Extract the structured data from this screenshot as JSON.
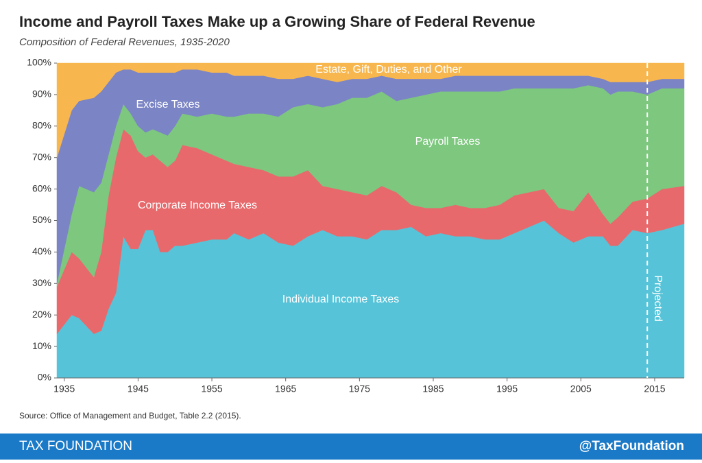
{
  "chart_data": {
    "type": "stacked-area",
    "title": "Income and Payroll Taxes Make up a Growing Share of Federal Revenue",
    "subtitle": "Composition of Federal Revenues, 1935-2020",
    "source": "Source: Office of Management and Budget, Table 2.2 (2015).",
    "x": [
      1934,
      1936,
      1937,
      1939,
      1940,
      1941,
      1942,
      1943,
      1944,
      1945,
      1946,
      1947,
      1948,
      1949,
      1950,
      1951,
      1953,
      1955,
      1957,
      1958,
      1960,
      1962,
      1964,
      1966,
      1968,
      1970,
      1972,
      1974,
      1976,
      1978,
      1980,
      1982,
      1984,
      1986,
      1988,
      1990,
      1992,
      1994,
      1996,
      1998,
      2000,
      2002,
      2004,
      2006,
      2008,
      2009,
      2010,
      2012,
      2014,
      2016,
      2019
    ],
    "xlim": [
      1934,
      2019
    ],
    "xticks": [
      1935,
      1945,
      1955,
      1965,
      1975,
      1985,
      1995,
      2005,
      2015
    ],
    "ylim": [
      0,
      100
    ],
    "yticks": [
      {
        "value": 0,
        "label": "0%"
      },
      {
        "value": 10,
        "label": "10%"
      },
      {
        "value": 20,
        "label": "20%"
      },
      {
        "value": 30,
        "label": "30%"
      },
      {
        "value": 40,
        "label": "40%"
      },
      {
        "value": 50,
        "label": "50%"
      },
      {
        "value": 60,
        "label": "60%"
      },
      {
        "value": 70,
        "label": "70%"
      },
      {
        "value": 80,
        "label": "80%"
      },
      {
        "value": 90,
        "label": "90%"
      },
      {
        "value": 100,
        "label": "100%"
      }
    ],
    "series": [
      {
        "name": "Individual Income Taxes",
        "color": "#56c3d8",
        "values": [
          14,
          20,
          19,
          14,
          15,
          22,
          27,
          45,
          41,
          41,
          47,
          47,
          40,
          40,
          42,
          42,
          43,
          44,
          44,
          46,
          44,
          46,
          43,
          42,
          45,
          47,
          45,
          45,
          44,
          47,
          47,
          48,
          45,
          46,
          45,
          45,
          44,
          44,
          46,
          48,
          50,
          46,
          43,
          45,
          45,
          42,
          42,
          47,
          46,
          47,
          49
        ]
      },
      {
        "name": "Corporate Income Taxes",
        "color": "#e8696c",
        "values": [
          15,
          20,
          19,
          18,
          25,
          36,
          43,
          34,
          36,
          31,
          23,
          24,
          29,
          27,
          27,
          32,
          30,
          27,
          25,
          22,
          23,
          20,
          21,
          22,
          21,
          14,
          15,
          14,
          14,
          14,
          12,
          7,
          9,
          8,
          10,
          9,
          10,
          11,
          12,
          11,
          10,
          8,
          10,
          14,
          7,
          7,
          9,
          9,
          11,
          13,
          12
        ]
      },
      {
        "name": "Payroll Taxes",
        "color": "#7dc77f",
        "values": [
          1,
          12,
          23,
          27,
          22,
          13,
          10,
          8,
          7,
          8,
          8,
          8,
          9,
          10,
          11,
          10,
          10,
          13,
          14,
          15,
          17,
          18,
          19,
          22,
          21,
          25,
          27,
          30,
          31,
          30,
          29,
          34,
          36,
          37,
          36,
          37,
          37,
          36,
          34,
          33,
          32,
          38,
          39,
          34,
          40,
          41,
          40,
          35,
          33,
          32,
          31
        ]
      },
      {
        "name": "Excise Taxes",
        "color": "#7b84c4",
        "values": [
          40,
          33,
          27,
          30,
          29,
          23,
          17,
          11,
          14,
          17,
          19,
          18,
          19,
          20,
          17,
          14,
          15,
          13,
          14,
          13,
          12,
          12,
          12,
          9,
          9,
          9,
          7,
          6,
          6,
          5,
          7,
          6,
          5,
          4,
          5,
          5,
          5,
          5,
          4,
          4,
          4,
          4,
          4,
          3,
          3,
          4,
          3,
          3,
          4,
          3,
          3
        ]
      },
      {
        "name": "Estate, Gift, Duties, and Other",
        "color": "#f8b74e",
        "values": [
          30,
          15,
          12,
          11,
          9,
          6,
          3,
          2,
          2,
          3,
          3,
          3,
          3,
          3,
          3,
          2,
          2,
          3,
          3,
          4,
          4,
          4,
          5,
          5,
          4,
          5,
          6,
          5,
          5,
          4,
          5,
          5,
          5,
          5,
          4,
          4,
          4,
          4,
          4,
          4,
          4,
          4,
          4,
          4,
          5,
          6,
          6,
          6,
          6,
          5,
          5
        ]
      }
    ],
    "annotation": {
      "x": 2014,
      "label": "Projected"
    }
  },
  "footer": {
    "left": "TAX FOUNDATION",
    "right": "@TaxFoundation"
  }
}
